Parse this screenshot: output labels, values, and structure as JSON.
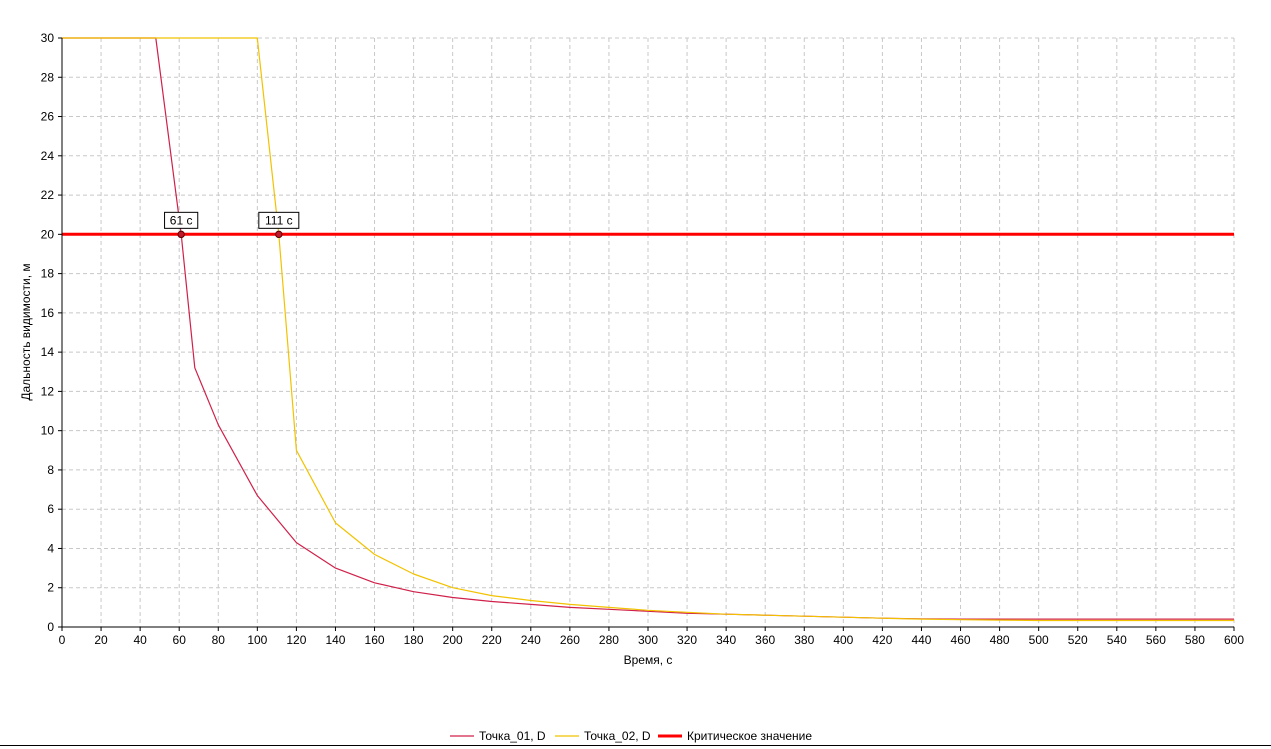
{
  "chart_data": {
    "type": "line",
    "title": "",
    "xlabel": "Время, с",
    "ylabel": "Дальность видимости, м",
    "xlim": [
      0,
      600
    ],
    "ylim": [
      0,
      30
    ],
    "x_ticks": [
      0,
      20,
      40,
      60,
      80,
      100,
      120,
      140,
      160,
      180,
      200,
      220,
      240,
      260,
      280,
      300,
      320,
      340,
      360,
      380,
      400,
      420,
      440,
      460,
      480,
      500,
      520,
      540,
      560,
      580,
      600
    ],
    "y_ticks": [
      0,
      2,
      4,
      6,
      8,
      10,
      12,
      14,
      16,
      18,
      20,
      22,
      24,
      26,
      28,
      30
    ],
    "grid": true,
    "legend_position": "bottom-center",
    "series": [
      {
        "name": "Точка_01, D",
        "color": "#d0204a",
        "points": [
          [
            0,
            30
          ],
          [
            48,
            30
          ],
          [
            61,
            20
          ],
          [
            68,
            13.2
          ],
          [
            80,
            10.3
          ],
          [
            100,
            6.7
          ],
          [
            120,
            4.3
          ],
          [
            140,
            3.0
          ],
          [
            160,
            2.25
          ],
          [
            180,
            1.8
          ],
          [
            200,
            1.5
          ],
          [
            220,
            1.3
          ],
          [
            240,
            1.15
          ],
          [
            260,
            1.0
          ],
          [
            280,
            0.9
          ],
          [
            300,
            0.8
          ],
          [
            320,
            0.7
          ],
          [
            340,
            0.65
          ],
          [
            360,
            0.6
          ],
          [
            380,
            0.55
          ],
          [
            400,
            0.5
          ],
          [
            420,
            0.45
          ],
          [
            440,
            0.42
          ],
          [
            460,
            0.4
          ],
          [
            500,
            0.4
          ],
          [
            600,
            0.4
          ]
        ]
      },
      {
        "name": "Точка_02, D",
        "color": "#f2c200",
        "points": [
          [
            0,
            30
          ],
          [
            100,
            30
          ],
          [
            111,
            20
          ],
          [
            120,
            9.0
          ],
          [
            140,
            5.3
          ],
          [
            160,
            3.7
          ],
          [
            180,
            2.7
          ],
          [
            200,
            2.0
          ],
          [
            220,
            1.6
          ],
          [
            240,
            1.35
          ],
          [
            260,
            1.15
          ],
          [
            280,
            1.0
          ],
          [
            300,
            0.85
          ],
          [
            320,
            0.75
          ],
          [
            340,
            0.65
          ],
          [
            360,
            0.6
          ],
          [
            380,
            0.55
          ],
          [
            400,
            0.5
          ],
          [
            420,
            0.45
          ],
          [
            440,
            0.4
          ],
          [
            460,
            0.37
          ],
          [
            480,
            0.35
          ],
          [
            500,
            0.33
          ],
          [
            600,
            0.33
          ]
        ]
      },
      {
        "name": "Критическое значение",
        "color": "#ff0000",
        "points": [
          [
            0,
            20
          ],
          [
            600,
            20
          ]
        ]
      }
    ],
    "annotations": [
      {
        "label": "61 с",
        "x": 61,
        "y": 20
      },
      {
        "label": "111 с",
        "x": 111,
        "y": 20
      }
    ]
  }
}
